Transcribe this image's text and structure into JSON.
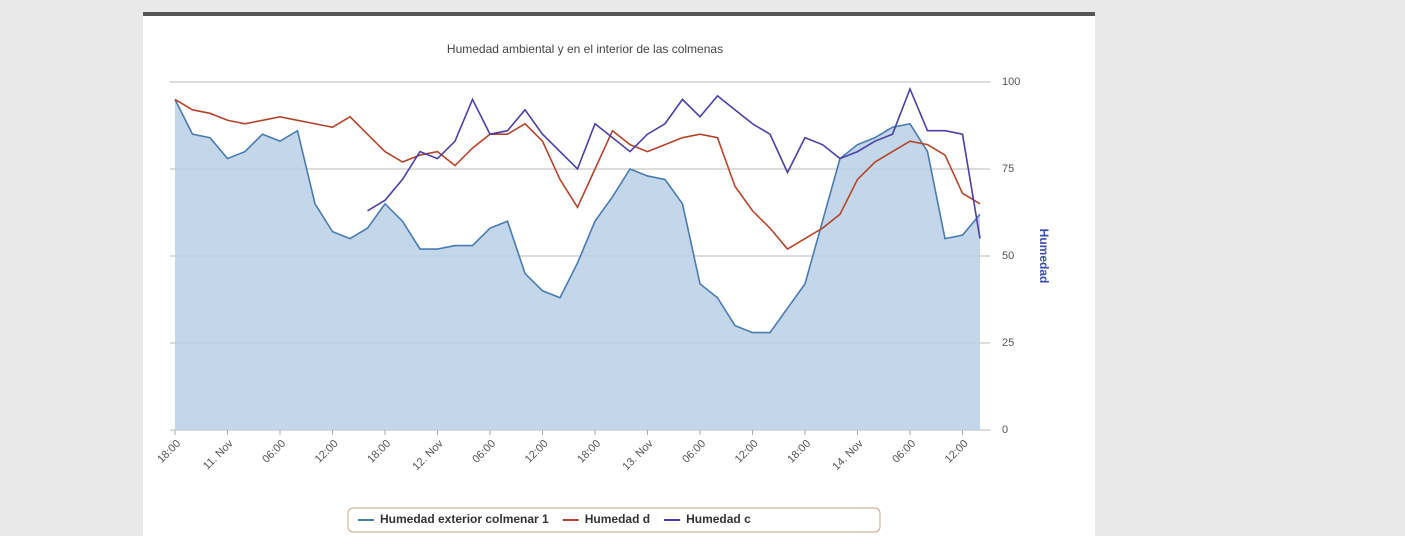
{
  "chart_data": {
    "type": "line",
    "title": "Humedad ambiental y en el interior de las colmenas",
    "y_axis_label": "Humedad",
    "x": [
      0,
      2,
      4,
      6,
      8,
      10,
      12,
      14,
      16,
      18,
      20,
      22,
      24,
      26,
      28,
      30,
      32,
      34,
      36,
      38,
      40,
      42,
      44,
      46,
      48,
      50,
      52,
      54,
      56,
      58,
      60,
      62,
      64,
      66,
      68,
      70,
      72,
      74,
      76,
      78,
      80,
      82,
      84,
      86,
      88,
      90,
      92
    ],
    "xlim": [
      0,
      92
    ],
    "xticks": [
      {
        "value": 0,
        "label": "18:00"
      },
      {
        "value": 6,
        "label": "11. Nov"
      },
      {
        "value": 12,
        "label": "06:00"
      },
      {
        "value": 18,
        "label": "12:00"
      },
      {
        "value": 24,
        "label": "18:00"
      },
      {
        "value": 30,
        "label": "12. Nov"
      },
      {
        "value": 36,
        "label": "06:00"
      },
      {
        "value": 42,
        "label": "12:00"
      },
      {
        "value": 48,
        "label": "18:00"
      },
      {
        "value": 54,
        "label": "13. Nov"
      },
      {
        "value": 60,
        "label": "06:00"
      },
      {
        "value": 66,
        "label": "12:00"
      },
      {
        "value": 72,
        "label": "18:00"
      },
      {
        "value": 78,
        "label": "14. Nov"
      },
      {
        "value": 84,
        "label": "06:00"
      },
      {
        "value": 90,
        "label": "12:00"
      }
    ],
    "ylim": [
      0,
      100
    ],
    "yticks": [
      0,
      25,
      50,
      75,
      100
    ],
    "grid": true,
    "series": [
      {
        "name": "Humedad exterior colmenar 1",
        "color": "#4a7bb0",
        "fill": "#b9cfe6",
        "area": true,
        "values": [
          95,
          85,
          84,
          78,
          80,
          85,
          83,
          86,
          65,
          57,
          55,
          58,
          65,
          60,
          52,
          52,
          53,
          53,
          58,
          60,
          45,
          40,
          38,
          48,
          60,
          67,
          75,
          73,
          72,
          65,
          42,
          38,
          30,
          28,
          28,
          35,
          42,
          60,
          78,
          82,
          84,
          87,
          88,
          80,
          55,
          56,
          62
        ]
      },
      {
        "name": "Humedad d",
        "color": "#b5452a",
        "values": [
          95,
          92,
          91,
          89,
          88,
          89,
          90,
          89,
          88,
          87,
          90,
          85,
          80,
          77,
          79,
          80,
          76,
          81,
          85,
          85,
          88,
          83,
          72,
          64,
          75,
          86,
          82,
          80,
          82,
          84,
          85,
          84,
          70,
          63,
          58,
          52,
          55,
          58,
          62,
          72,
          77,
          80,
          83,
          82,
          79,
          68,
          65
        ]
      },
      {
        "name": "Humedad c",
        "color": "#4a3fa6",
        "values": [
          null,
          null,
          null,
          null,
          null,
          null,
          null,
          null,
          null,
          null,
          null,
          63,
          66,
          72,
          80,
          78,
          83,
          95,
          85,
          86,
          92,
          85,
          80,
          75,
          88,
          84,
          80,
          85,
          88,
          95,
          90,
          96,
          92,
          88,
          85,
          74,
          84,
          82,
          78,
          80,
          83,
          85,
          98,
          86,
          86,
          85,
          55
        ]
      }
    ]
  }
}
